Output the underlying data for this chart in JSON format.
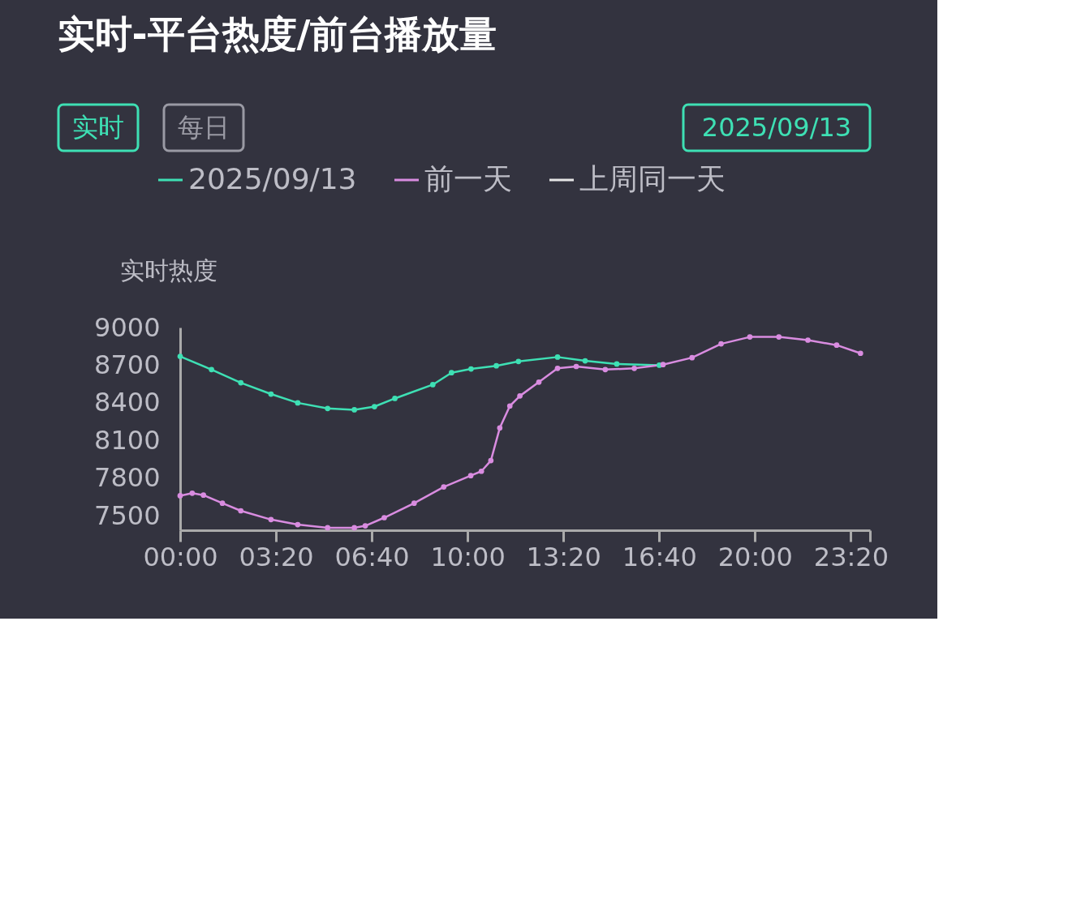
{
  "chart_data": {
    "type": "line",
    "title": "实时-平台热度/前台播放量",
    "ylabel": "实时热度",
    "annotations": [
      "实时",
      "每日",
      "2025/09/13"
    ],
    "xlim": [
      0,
      24
    ],
    "xticks": [
      {
        "value": 0,
        "label": "00:00"
      },
      {
        "value": 3.3333,
        "label": "03:20"
      },
      {
        "value": 6.6667,
        "label": "06:40"
      },
      {
        "value": 10,
        "label": "10:00"
      },
      {
        "value": 13.3333,
        "label": "13:20"
      },
      {
        "value": 16.6667,
        "label": "16:40"
      },
      {
        "value": 20,
        "label": "20:00"
      },
      {
        "value": 23.3333,
        "label": "23:20"
      },
      {
        "value": 24,
        "label": null
      }
    ],
    "ylim": [
      7385,
      9000
    ],
    "yticks": [
      7500,
      7800,
      8100,
      8400,
      8700,
      9000
    ],
    "grid": false,
    "legend": "top",
    "marker": "circle",
    "line_style": "solid",
    "series": [
      {
        "name": "2025/09/13",
        "color": "#3ee0b4",
        "x": [
          0,
          1.09,
          2.11,
          3.16,
          4.09,
          5.13,
          6.06,
          6.76,
          7.47,
          8.79,
          9.44,
          10.12,
          11.0,
          11.77,
          13.13,
          14.09,
          15.19,
          16.67
        ],
        "values": [
          8770,
          8665,
          8560,
          8470,
          8400,
          8355,
          8345,
          8370,
          8435,
          8545,
          8640,
          8670,
          8695,
          8730,
          8765,
          8735,
          8710,
          8700
        ]
      },
      {
        "name": "前一天",
        "color": "#d98ce0",
        "x": [
          0,
          0.42,
          0.81,
          1.47,
          2.11,
          3.16,
          4.09,
          5.13,
          6.06,
          6.44,
          7.1,
          8.14,
          9.17,
          10.11,
          10.48,
          10.81,
          11.12,
          11.47,
          11.82,
          12.48,
          13.13,
          13.78,
          14.79,
          15.8,
          16.8,
          17.81,
          18.82,
          19.82,
          20.83,
          21.84,
          22.84,
          23.67
        ],
        "values": [
          7660,
          7680,
          7665,
          7600,
          7540,
          7470,
          7430,
          7405,
          7405,
          7420,
          7485,
          7600,
          7730,
          7820,
          7855,
          7940,
          8200,
          8375,
          8455,
          8565,
          8675,
          8690,
          8665,
          8675,
          8705,
          8760,
          8870,
          8925,
          8925,
          8900,
          8860,
          8795
        ]
      },
      {
        "name": "上周同一天",
        "color": "#e6e6e6"
      }
    ]
  }
}
